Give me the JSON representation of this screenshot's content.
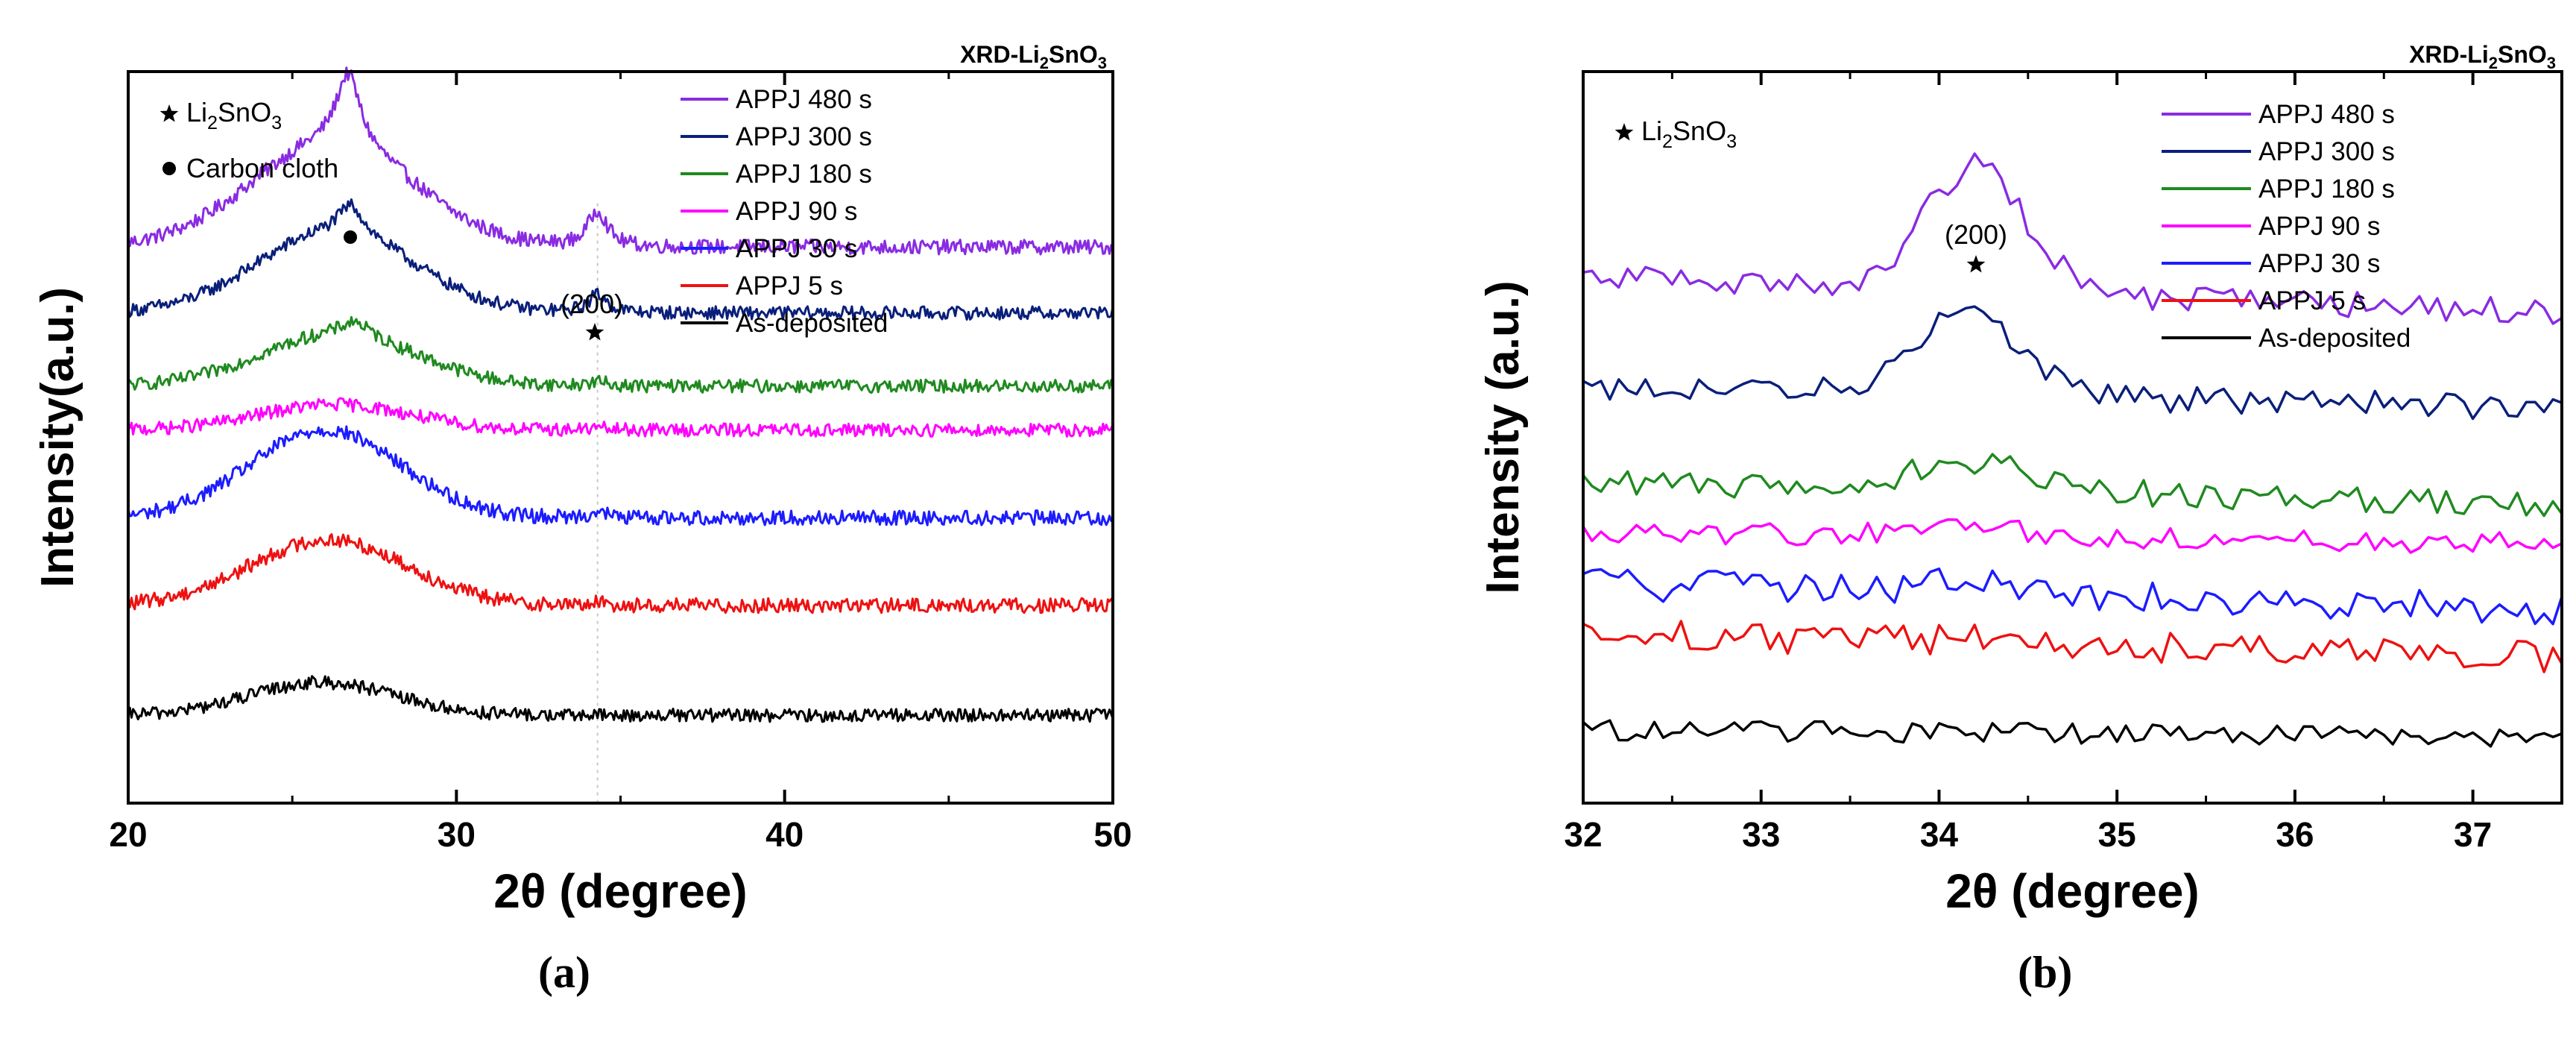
{
  "figure": {
    "panel_a_label": "(a)",
    "panel_b_label": "(b)"
  },
  "legend_labels": [
    "APPJ 480 s",
    "APPJ 300 s",
    "APPJ 180 s",
    "APPJ 90 s",
    "APPJ 30 s",
    "APPJ 5 s",
    "As-deposited"
  ],
  "colors": {
    "APPJ 480 s": "#8a2be2",
    "APPJ 300 s": "#0a1f7a",
    "APPJ 180 s": "#1f8a1f",
    "APPJ 90 s": "#ff00ff",
    "APPJ 30 s": "#1c1cff",
    "APPJ 5 s": "#ee1111",
    "As-deposited": "#000000"
  },
  "chart_data": [
    {
      "type": "line",
      "panel": "a",
      "title": "XRD-Li2SnO3",
      "title_main": "XRD-Li",
      "title_sub1": "2",
      "title_mid": "SnO",
      "title_sub2": "3",
      "xlabel": "2θ (degree)",
      "ylabel": "Intensity(a.u.)",
      "xlim": [
        20,
        50
      ],
      "ylim": [
        0,
        100
      ],
      "xticks": [
        20,
        30,
        40,
        50
      ],
      "xtick_labels": [
        "20",
        "30",
        "40",
        "50"
      ],
      "grid": false,
      "legend_position": "top-right",
      "annotations": {
        "marker_legend_star": "Li2SnO3",
        "marker_legend_dot": "Carbon cloth",
        "peak_label": "(200)",
        "star_x": 34.3,
        "dot_x": 26.7,
        "dashed_line_x": 34.3
      },
      "series": [
        {
          "name": "APPJ 480 s",
          "baseline": 76,
          "broad_amp": 14,
          "broad_center": 26.2,
          "broad_width": 2.5,
          "sharp_amp": 10,
          "sharp_center": 26.7,
          "sharp_width": 0.45,
          "peak200_amp": 5,
          "noise": 1.0
        },
        {
          "name": "APPJ 300 s",
          "baseline": 67,
          "broad_amp": 11,
          "broad_center": 26.3,
          "broad_width": 2.4,
          "sharp_amp": 4,
          "sharp_center": 26.8,
          "sharp_width": 0.45,
          "peak200_amp": 2.5,
          "noise": 0.9
        },
        {
          "name": "APPJ 180 s",
          "baseline": 57,
          "broad_amp": 7,
          "broad_center": 26.4,
          "broad_width": 2.4,
          "sharp_amp": 2,
          "sharp_center": 26.9,
          "sharp_width": 0.5,
          "peak200_amp": 0.6,
          "noise": 0.9
        },
        {
          "name": "APPJ 90 s",
          "baseline": 51,
          "broad_amp": 3.5,
          "broad_center": 26.3,
          "broad_width": 2.3,
          "sharp_amp": 0,
          "sharp_center": 26.9,
          "sharp_width": 0.5,
          "peak200_amp": 0.3,
          "noise": 0.9
        },
        {
          "name": "APPJ 30 s",
          "baseline": 39,
          "broad_amp": 12,
          "broad_center": 26.0,
          "broad_width": 2.3,
          "sharp_amp": 0,
          "sharp_center": 26.9,
          "sharp_width": 0.5,
          "peak200_amp": 0.8,
          "noise": 1.0
        },
        {
          "name": "APPJ 5 s",
          "baseline": 27,
          "broad_amp": 9,
          "broad_center": 26.1,
          "broad_width": 2.4,
          "sharp_amp": 0,
          "sharp_center": 26.9,
          "sharp_width": 0.5,
          "peak200_amp": 0.4,
          "noise": 1.0
        },
        {
          "name": "As-deposited",
          "baseline": 12,
          "broad_amp": 4.5,
          "broad_center": 25.9,
          "broad_width": 2.2,
          "sharp_amp": 0,
          "sharp_center": 26.9,
          "sharp_width": 0.5,
          "peak200_amp": 0,
          "noise": 0.9
        }
      ]
    },
    {
      "type": "line",
      "panel": "b",
      "title": "XRD-Li2SnO3",
      "title_main": "XRD-Li",
      "title_sub1": "2",
      "title_mid": "SnO",
      "title_sub2": "3",
      "xlabel": "2θ (degree)",
      "ylabel": "Intensity (a.u.)",
      "xlim": [
        32,
        37.5
      ],
      "ylim": [
        0,
        100
      ],
      "xticks": [
        32,
        33,
        34,
        35,
        36,
        37
      ],
      "xtick_labels": [
        "32",
        "33",
        "34",
        "35",
        "36",
        "37"
      ],
      "grid": false,
      "legend_position": "top-right",
      "annotations": {
        "marker_legend_star": "Li2SnO3",
        "peak_label": "(200)",
        "star_x": 34.2
      },
      "series": [
        {
          "name": "APPJ 480 s",
          "baseline": 72,
          "peak_amp": 17,
          "peak_center": 34.2,
          "peak_width": 0.28,
          "slope": -5,
          "noise": 1.8
        },
        {
          "name": "APPJ 300 s",
          "baseline": 57,
          "peak_amp": 12,
          "peak_center": 34.15,
          "peak_width": 0.28,
          "slope": -3,
          "noise": 1.8
        },
        {
          "name": "APPJ 180 s",
          "baseline": 44,
          "peak_amp": 3.5,
          "peak_center": 34.2,
          "peak_width": 0.35,
          "slope": -3,
          "noise": 1.8
        },
        {
          "name": "APPJ 90 s",
          "baseline": 37,
          "peak_amp": 1.2,
          "peak_center": 34.2,
          "peak_width": 0.35,
          "slope": -1.5,
          "noise": 1.5
        },
        {
          "name": "APPJ 30 s",
          "baseline": 30,
          "peak_amp": 2.0,
          "peak_center": 34.1,
          "peak_width": 0.2,
          "slope": -3.5,
          "noise": 2.2
        },
        {
          "name": "APPJ 5 s",
          "baseline": 23,
          "peak_amp": 0.8,
          "peak_center": 34.2,
          "peak_width": 0.3,
          "slope": -3,
          "noise": 2.2
        },
        {
          "name": "As-deposited",
          "baseline": 10,
          "peak_amp": 0,
          "peak_center": 34.2,
          "peak_width": 0.3,
          "slope": -1,
          "noise": 1.4
        }
      ]
    }
  ]
}
